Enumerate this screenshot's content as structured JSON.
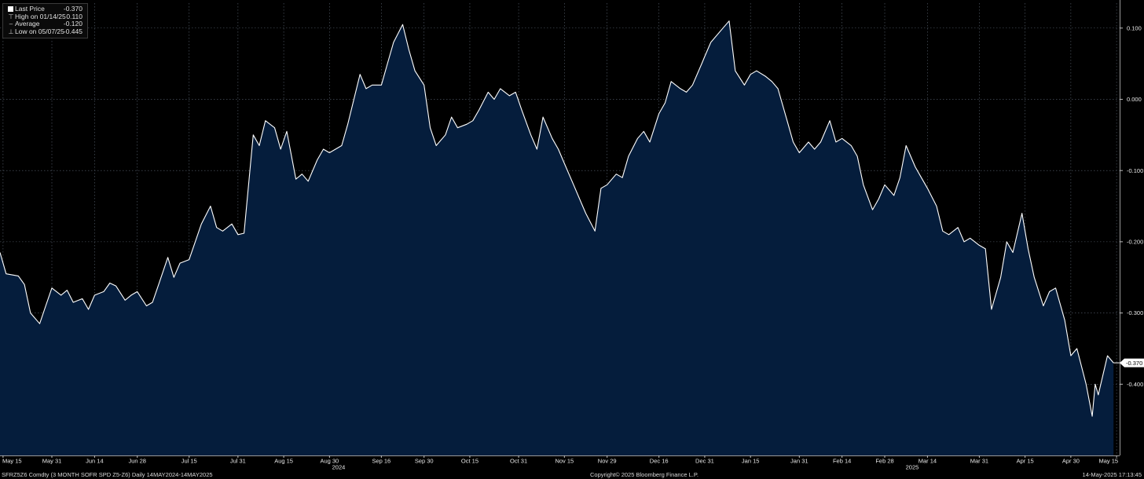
{
  "legend": {
    "last_label": "Last Price",
    "last_value": "-0.370",
    "high_label": "High on 01/14/25",
    "high_value": "0.110",
    "avg_label": "Average",
    "avg_value": "-0.120",
    "low_label": "Low on 05/07/25",
    "low_value": "-0.445"
  },
  "footer": {
    "left": "SFRZ5Z6 Comdty (3 MONTH SOFR SPD  Z5-Z6)  Daily 14MAY2024-14MAY2025",
    "center": "Copyright© 2025 Bloomberg Finance L.P.",
    "right": "14-May-2025 17:13:45"
  },
  "colors": {
    "background": "#000000",
    "area_fill": "#051d3c",
    "line": "#ffffff",
    "grid": "#5a6472",
    "text": "#e8e8e8"
  },
  "chart_data": {
    "type": "area",
    "series": [
      {
        "name": "Last Price"
      }
    ],
    "x_tick_labels": [
      "May 15",
      "May 31",
      "Jun 14",
      "Jun 28",
      "Jul 15",
      "Jul 31",
      "Aug 15",
      "Aug 30",
      "Sep 16",
      "Sep 30",
      "Oct 15",
      "Oct 31",
      "Nov 15",
      "Nov 29",
      "Dec 16",
      "Dec 31",
      "Jan 15",
      "Jan 31",
      "Feb 14",
      "Feb 28",
      "Mar 14",
      "Mar 31",
      "Apr 15",
      "Apr 30",
      "May 15"
    ],
    "x_tick_dates": [
      "2024-05-15",
      "2024-05-31",
      "2024-06-14",
      "2024-06-28",
      "2024-07-15",
      "2024-07-31",
      "2024-08-15",
      "2024-08-30",
      "2024-09-16",
      "2024-09-30",
      "2024-10-15",
      "2024-10-31",
      "2024-11-15",
      "2024-11-29",
      "2024-12-16",
      "2024-12-31",
      "2025-01-15",
      "2025-01-31",
      "2025-02-14",
      "2025-02-28",
      "2025-03-14",
      "2025-03-31",
      "2025-04-15",
      "2025-04-30",
      "2025-05-15"
    ],
    "year_labels": [
      {
        "text": "2024",
        "date": "2024-09-02"
      },
      {
        "text": "2025",
        "date": "2025-03-09"
      }
    ],
    "y_tick_labels": [
      "0.100",
      "0.000",
      "-0.100",
      "-0.200",
      "-0.300",
      "-0.400"
    ],
    "y_ticks": [
      0.1,
      0.0,
      -0.1,
      -0.2,
      -0.3,
      -0.4
    ],
    "ylim": [
      -0.5,
      0.135
    ],
    "xlim": [
      "2024-05-14",
      "2025-05-16"
    ],
    "grid": true,
    "last_label": "-0.370",
    "points": [
      [
        "2024-05-14",
        -0.215
      ],
      [
        "2024-05-16",
        -0.245
      ],
      [
        "2024-05-20",
        -0.248
      ],
      [
        "2024-05-22",
        -0.26
      ],
      [
        "2024-05-24",
        -0.3
      ],
      [
        "2024-05-27",
        -0.315
      ],
      [
        "2024-05-29",
        -0.29
      ],
      [
        "2024-05-31",
        -0.265
      ],
      [
        "2024-06-03",
        -0.275
      ],
      [
        "2024-06-05",
        -0.268
      ],
      [
        "2024-06-07",
        -0.285
      ],
      [
        "2024-06-10",
        -0.28
      ],
      [
        "2024-06-12",
        -0.295
      ],
      [
        "2024-06-14",
        -0.275
      ],
      [
        "2024-06-17",
        -0.27
      ],
      [
        "2024-06-19",
        -0.258
      ],
      [
        "2024-06-21",
        -0.262
      ],
      [
        "2024-06-24",
        -0.282
      ],
      [
        "2024-06-26",
        -0.275
      ],
      [
        "2024-06-28",
        -0.27
      ],
      [
        "2024-07-01",
        -0.29
      ],
      [
        "2024-07-03",
        -0.285
      ],
      [
        "2024-07-05",
        -0.26
      ],
      [
        "2024-07-08",
        -0.222
      ],
      [
        "2024-07-10",
        -0.25
      ],
      [
        "2024-07-12",
        -0.23
      ],
      [
        "2024-07-15",
        -0.225
      ],
      [
        "2024-07-17",
        -0.2
      ],
      [
        "2024-07-19",
        -0.175
      ],
      [
        "2024-07-22",
        -0.15
      ],
      [
        "2024-07-24",
        -0.18
      ],
      [
        "2024-07-26",
        -0.185
      ],
      [
        "2024-07-29",
        -0.175
      ],
      [
        "2024-07-31",
        -0.19
      ],
      [
        "2024-08-02",
        -0.188
      ],
      [
        "2024-08-05",
        -0.05
      ],
      [
        "2024-08-07",
        -0.065
      ],
      [
        "2024-08-09",
        -0.03
      ],
      [
        "2024-08-12",
        -0.04
      ],
      [
        "2024-08-14",
        -0.07
      ],
      [
        "2024-08-16",
        -0.045
      ],
      [
        "2024-08-19",
        -0.112
      ],
      [
        "2024-08-21",
        -0.105
      ],
      [
        "2024-08-23",
        -0.115
      ],
      [
        "2024-08-26",
        -0.085
      ],
      [
        "2024-08-28",
        -0.07
      ],
      [
        "2024-08-30",
        -0.075
      ],
      [
        "2024-09-03",
        -0.065
      ],
      [
        "2024-09-05",
        -0.035
      ],
      [
        "2024-09-09",
        0.035
      ],
      [
        "2024-09-11",
        0.015
      ],
      [
        "2024-09-13",
        0.02
      ],
      [
        "2024-09-16",
        0.02
      ],
      [
        "2024-09-18",
        0.05
      ],
      [
        "2024-09-20",
        0.08
      ],
      [
        "2024-09-23",
        0.105
      ],
      [
        "2024-09-25",
        0.07
      ],
      [
        "2024-09-27",
        0.04
      ],
      [
        "2024-09-30",
        0.02
      ],
      [
        "2024-10-02",
        -0.04
      ],
      [
        "2024-10-04",
        -0.065
      ],
      [
        "2024-10-07",
        -0.05
      ],
      [
        "2024-10-09",
        -0.025
      ],
      [
        "2024-10-11",
        -0.04
      ],
      [
        "2024-10-14",
        -0.035
      ],
      [
        "2024-10-16",
        -0.03
      ],
      [
        "2024-10-18",
        -0.015
      ],
      [
        "2024-10-21",
        0.01
      ],
      [
        "2024-10-23",
        0.0
      ],
      [
        "2024-10-25",
        0.015
      ],
      [
        "2024-10-28",
        0.005
      ],
      [
        "2024-10-30",
        0.01
      ],
      [
        "2024-11-01",
        -0.015
      ],
      [
        "2024-11-04",
        -0.05
      ],
      [
        "2024-11-06",
        -0.07
      ],
      [
        "2024-11-08",
        -0.025
      ],
      [
        "2024-11-11",
        -0.055
      ],
      [
        "2024-11-13",
        -0.07
      ],
      [
        "2024-11-15",
        -0.09
      ],
      [
        "2024-11-18",
        -0.12
      ],
      [
        "2024-11-20",
        -0.14
      ],
      [
        "2024-11-22",
        -0.16
      ],
      [
        "2024-11-25",
        -0.185
      ],
      [
        "2024-11-27",
        -0.125
      ],
      [
        "2024-11-29",
        -0.12
      ],
      [
        "2024-12-02",
        -0.105
      ],
      [
        "2024-12-04",
        -0.11
      ],
      [
        "2024-12-06",
        -0.08
      ],
      [
        "2024-12-09",
        -0.055
      ],
      [
        "2024-12-11",
        -0.045
      ],
      [
        "2024-12-13",
        -0.06
      ],
      [
        "2024-12-16",
        -0.02
      ],
      [
        "2024-12-18",
        -0.005
      ],
      [
        "2024-12-20",
        0.025
      ],
      [
        "2024-12-23",
        0.015
      ],
      [
        "2024-12-25",
        0.01
      ],
      [
        "2024-12-27",
        0.02
      ],
      [
        "2024-12-30",
        0.05
      ],
      [
        "2024-12-31",
        0.06
      ],
      [
        "2025-01-02",
        0.08
      ],
      [
        "2025-01-06",
        0.1
      ],
      [
        "2025-01-08",
        0.11
      ],
      [
        "2025-01-10",
        0.04
      ],
      [
        "2025-01-13",
        0.02
      ],
      [
        "2025-01-15",
        0.035
      ],
      [
        "2025-01-17",
        0.04
      ],
      [
        "2025-01-20",
        0.032
      ],
      [
        "2025-01-22",
        0.025
      ],
      [
        "2025-01-24",
        0.015
      ],
      [
        "2025-01-27",
        -0.03
      ],
      [
        "2025-01-29",
        -0.06
      ],
      [
        "2025-01-31",
        -0.075
      ],
      [
        "2025-02-03",
        -0.06
      ],
      [
        "2025-02-05",
        -0.07
      ],
      [
        "2025-02-07",
        -0.06
      ],
      [
        "2025-02-10",
        -0.03
      ],
      [
        "2025-02-12",
        -0.06
      ],
      [
        "2025-02-14",
        -0.055
      ],
      [
        "2025-02-17",
        -0.065
      ],
      [
        "2025-02-19",
        -0.08
      ],
      [
        "2025-02-21",
        -0.12
      ],
      [
        "2025-02-24",
        -0.155
      ],
      [
        "2025-02-26",
        -0.14
      ],
      [
        "2025-02-28",
        -0.12
      ],
      [
        "2025-03-03",
        -0.135
      ],
      [
        "2025-03-05",
        -0.11
      ],
      [
        "2025-03-07",
        -0.065
      ],
      [
        "2025-03-10",
        -0.095
      ],
      [
        "2025-03-12",
        -0.11
      ],
      [
        "2025-03-14",
        -0.125
      ],
      [
        "2025-03-17",
        -0.15
      ],
      [
        "2025-03-19",
        -0.185
      ],
      [
        "2025-03-21",
        -0.19
      ],
      [
        "2025-03-24",
        -0.18
      ],
      [
        "2025-03-26",
        -0.2
      ],
      [
        "2025-03-28",
        -0.195
      ],
      [
        "2025-03-31",
        -0.205
      ],
      [
        "2025-04-02",
        -0.21
      ],
      [
        "2025-04-04",
        -0.295
      ],
      [
        "2025-04-07",
        -0.25
      ],
      [
        "2025-04-09",
        -0.2
      ],
      [
        "2025-04-11",
        -0.215
      ],
      [
        "2025-04-14",
        -0.16
      ],
      [
        "2025-04-16",
        -0.21
      ],
      [
        "2025-04-18",
        -0.25
      ],
      [
        "2025-04-21",
        -0.29
      ],
      [
        "2025-04-23",
        -0.27
      ],
      [
        "2025-04-25",
        -0.265
      ],
      [
        "2025-04-28",
        -0.31
      ],
      [
        "2025-04-30",
        -0.36
      ],
      [
        "2025-05-02",
        -0.35
      ],
      [
        "2025-05-05",
        -0.4
      ],
      [
        "2025-05-07",
        -0.445
      ],
      [
        "2025-05-08",
        -0.4
      ],
      [
        "2025-05-09",
        -0.415
      ],
      [
        "2025-05-12",
        -0.36
      ],
      [
        "2025-05-14",
        -0.37
      ]
    ]
  }
}
